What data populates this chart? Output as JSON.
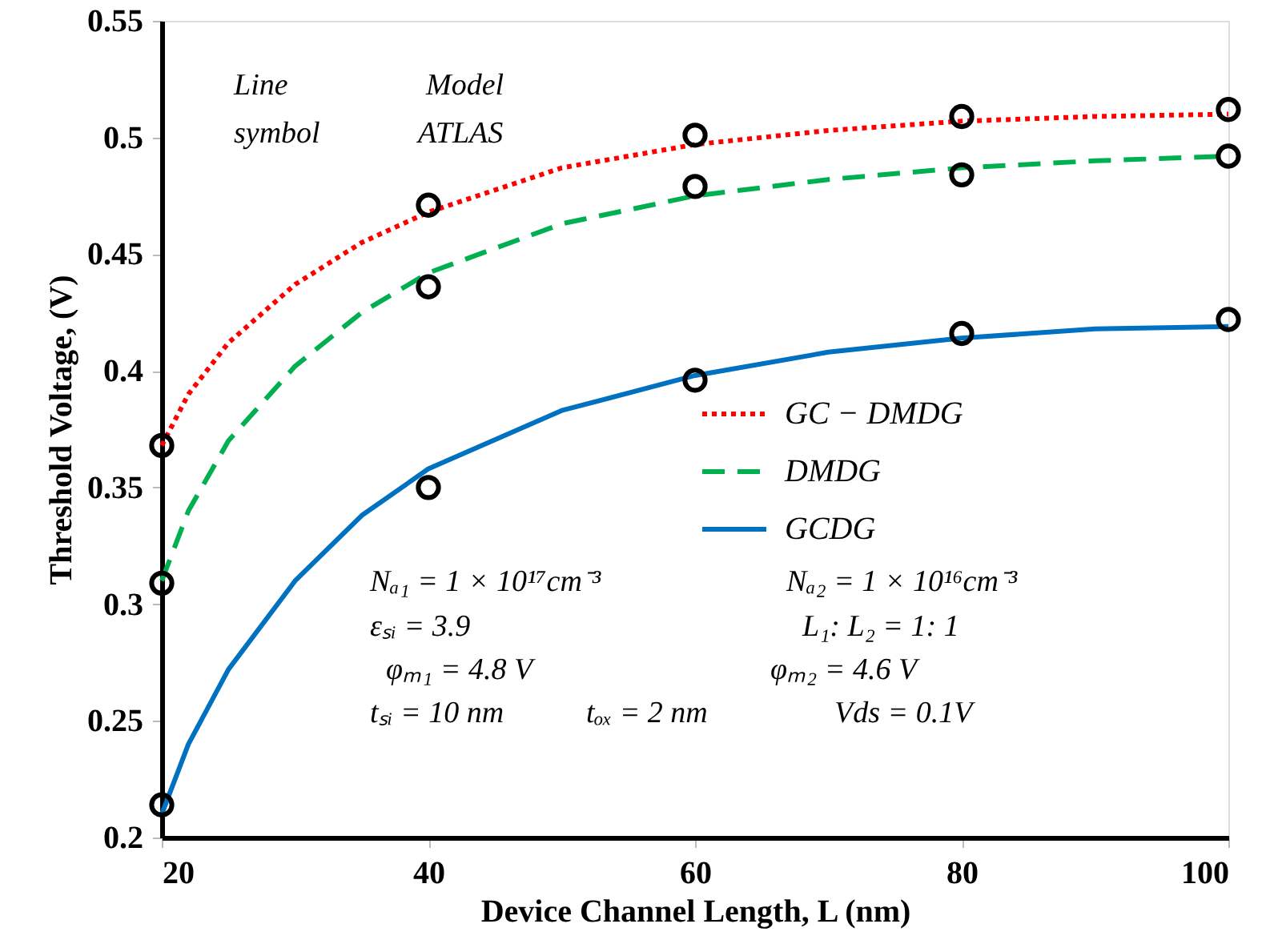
{
  "chart_data": {
    "type": "line",
    "xlabel": "Device Channel Length, L (nm)",
    "ylabel": "Threshold Voltage, (V)",
    "xlim": [
      20,
      100
    ],
    "xticks": [
      20,
      40,
      60,
      80,
      100
    ],
    "ylim": [
      0.2,
      0.55
    ],
    "yticks": [
      {
        "value": 0.2,
        "label": "0.2"
      },
      0.25,
      {
        "value": 0.3,
        "label": "0.3"
      },
      0.35,
      {
        "value": 0.4,
        "label": "0.4"
      },
      0.45,
      {
        "value": 0.5,
        "label": "0.5"
      },
      0.55
    ],
    "grid": false,
    "legend": "right",
    "series": [
      {
        "name": "GC − DMDG",
        "color": "#ff0000",
        "line_style": "dotted",
        "marker": "none",
        "x": [
          20,
          22,
          25,
          30,
          35,
          40,
          50,
          60,
          70,
          80,
          90,
          100
        ],
        "values": [
          0.368,
          0.39,
          0.412,
          0.437,
          0.455,
          0.468,
          0.487,
          0.497,
          0.503,
          0.507,
          0.509,
          0.51
        ]
      },
      {
        "name": "DMDG",
        "color": "#00b050",
        "line_style": "dashed",
        "marker": "none",
        "x": [
          20,
          22,
          25,
          30,
          35,
          40,
          50,
          60,
          70,
          80,
          90,
          100
        ],
        "values": [
          0.31,
          0.34,
          0.37,
          0.402,
          0.425,
          0.442,
          0.463,
          0.475,
          0.482,
          0.487,
          0.49,
          0.492
        ]
      },
      {
        "name": "GCDG",
        "color": "#0070c0",
        "line_style": "solid",
        "marker": "none",
        "x": [
          20,
          22,
          25,
          30,
          35,
          40,
          50,
          60,
          70,
          80,
          90,
          100
        ],
        "values": [
          0.21,
          0.24,
          0.272,
          0.31,
          0.338,
          0.358,
          0.383,
          0.398,
          0.408,
          0.414,
          0.418,
          0.419
        ]
      },
      {
        "type": "scatter",
        "color": "#000000",
        "marker": "circle",
        "x": [
          20,
          40,
          60,
          80,
          100
        ],
        "values": [
          0.368,
          0.471,
          0.501,
          0.509,
          0.512
        ]
      },
      {
        "type": "scatter",
        "color": "#000000",
        "marker": "circle",
        "x": [
          20,
          40,
          60,
          80,
          100
        ],
        "values": [
          0.309,
          0.436,
          0.479,
          0.484,
          0.492
        ]
      },
      {
        "type": "scatter",
        "color": "#000000",
        "marker": "circle",
        "x": [
          20,
          40,
          60,
          80,
          100
        ],
        "values": [
          0.214,
          0.35,
          0.396,
          0.416,
          0.422
        ]
      }
    ],
    "annotations": [
      "Line",
      "symbol",
      "Model",
      "ATLAS",
      "Nₐ₁ = 1 × 10¹⁷cm⁻³",
      "Nₐ₂ = 1 × 10¹⁶cm⁻³",
      "εₛᵢ = 3.9",
      "L₁: L₂ = 1: 1",
      "φₘ₁ = 4.8 V",
      "φₘ₂ = 4.6 V",
      "tₛᵢ = 10 nm",
      "tₒₓ = 2 nm",
      "Vds = 0.1V"
    ]
  }
}
